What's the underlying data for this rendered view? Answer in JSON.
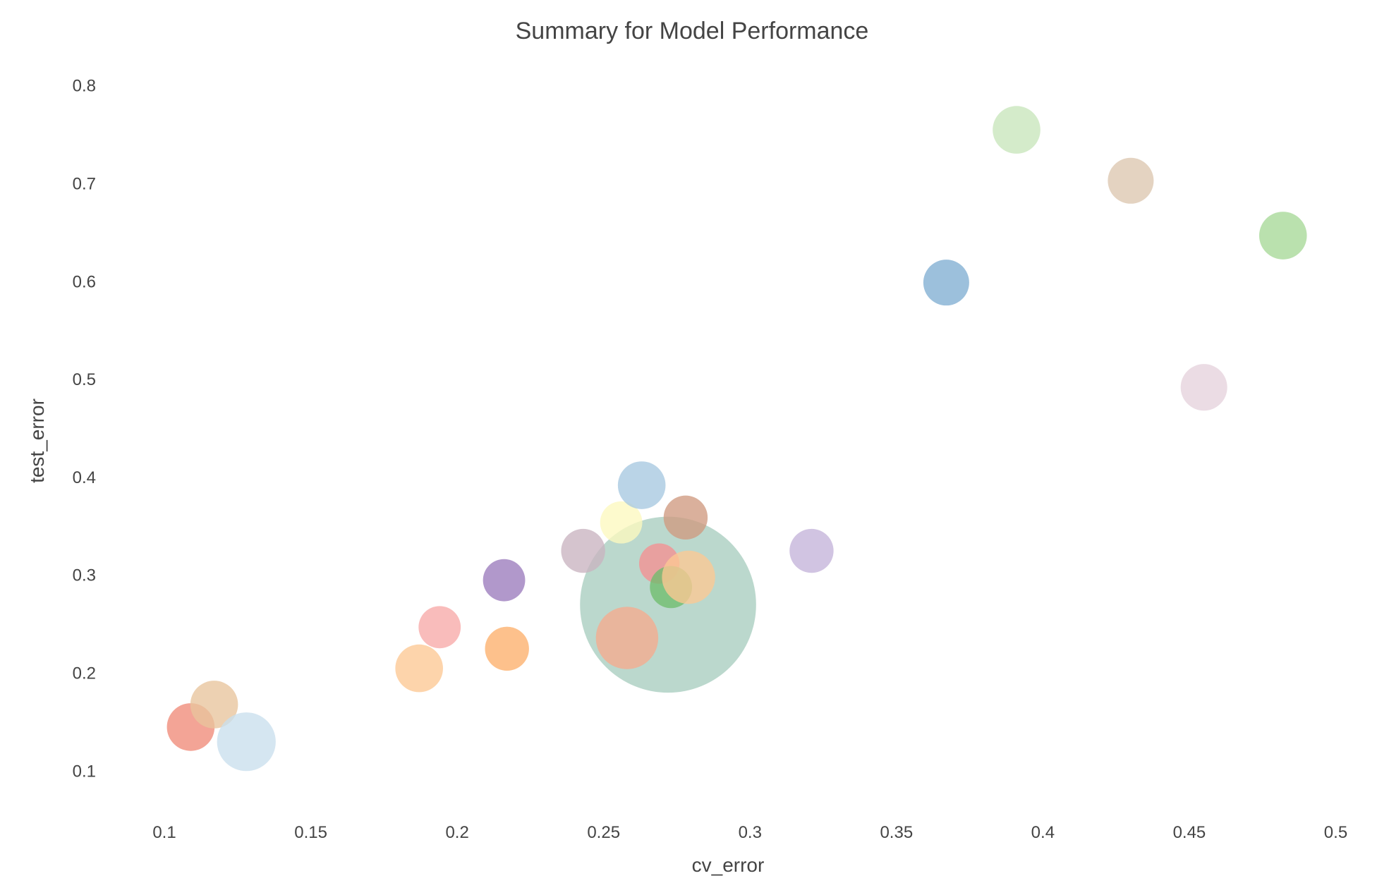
{
  "chart_data": {
    "type": "scatter",
    "title": "Summary for Model Performance",
    "xlabel": "cv_error",
    "ylabel": "test_error",
    "xlim": [
      0.08,
      0.51
    ],
    "ylim": [
      0.07,
      0.83
    ],
    "grid": false,
    "legend": "none",
    "x_ticks": [
      0.1,
      0.15,
      0.2,
      0.25,
      0.3,
      0.35,
      0.4,
      0.45,
      0.5
    ],
    "x_tick_labels": [
      "0.1",
      "0.15",
      "0.2",
      "0.25",
      "0.3",
      "0.35",
      "0.4",
      "0.45",
      "0.5"
    ],
    "y_ticks": [
      0.1,
      0.2,
      0.3,
      0.4,
      0.5,
      0.6,
      0.7,
      0.8
    ],
    "y_tick_labels": [
      "0.1",
      "0.2",
      "0.3",
      "0.4",
      "0.5",
      "0.6",
      "0.7",
      "0.8"
    ],
    "points": [
      {
        "x": 0.272,
        "y": 0.27,
        "size": 4.8,
        "color": "#a8cdbf"
      },
      {
        "x": 0.109,
        "y": 0.145,
        "size": 1.3,
        "color": "#f08a78"
      },
      {
        "x": 0.117,
        "y": 0.168,
        "size": 1.3,
        "color": "#e8c49c"
      },
      {
        "x": 0.128,
        "y": 0.13,
        "size": 1.6,
        "color": "#c9dfed"
      },
      {
        "x": 0.187,
        "y": 0.205,
        "size": 1.3,
        "color": "#fdc893"
      },
      {
        "x": 0.194,
        "y": 0.247,
        "size": 1.15,
        "color": "#f7a9a8"
      },
      {
        "x": 0.216,
        "y": 0.295,
        "size": 1.15,
        "color": "#9b7bbd"
      },
      {
        "x": 0.217,
        "y": 0.225,
        "size": 1.2,
        "color": "#fdaf6b"
      },
      {
        "x": 0.243,
        "y": 0.325,
        "size": 1.2,
        "color": "#c9b3c0"
      },
      {
        "x": 0.256,
        "y": 0.354,
        "size": 1.15,
        "color": "#fdf8bf"
      },
      {
        "x": 0.258,
        "y": 0.236,
        "size": 1.7,
        "color": "#f6ab8e"
      },
      {
        "x": 0.263,
        "y": 0.392,
        "size": 1.3,
        "color": "#a6c8e0"
      },
      {
        "x": 0.269,
        "y": 0.312,
        "size": 1.1,
        "color": "#f58f92"
      },
      {
        "x": 0.273,
        "y": 0.288,
        "size": 1.15,
        "color": "#6fbd6d"
      },
      {
        "x": 0.279,
        "y": 0.298,
        "size": 1.45,
        "color": "#fdc893"
      },
      {
        "x": 0.278,
        "y": 0.359,
        "size": 1.2,
        "color": "#cf9a80"
      },
      {
        "x": 0.321,
        "y": 0.325,
        "size": 1.2,
        "color": "#c4b3da"
      },
      {
        "x": 0.367,
        "y": 0.599,
        "size": 1.25,
        "color": "#80aed2"
      },
      {
        "x": 0.391,
        "y": 0.755,
        "size": 1.3,
        "color": "#c8e6bb"
      },
      {
        "x": 0.43,
        "y": 0.703,
        "size": 1.25,
        "color": "#dcc7b0"
      },
      {
        "x": 0.455,
        "y": 0.492,
        "size": 1.27,
        "color": "#e6d2dd"
      },
      {
        "x": 0.482,
        "y": 0.647,
        "size": 1.3,
        "color": "#a6d897"
      }
    ]
  }
}
